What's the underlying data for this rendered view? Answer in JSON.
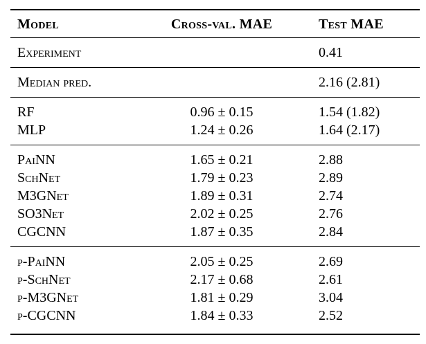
{
  "table": {
    "title": "model-mae-results-table",
    "columns": [
      {
        "label": "Model"
      },
      {
        "label": "Cross-val. MAE"
      },
      {
        "label": "Test MAE"
      }
    ],
    "rows": [
      {
        "model": "Experiment",
        "cv_mae": "",
        "test_mae": "0.41"
      },
      {
        "model": "Median pred.",
        "cv_mae": "",
        "test_mae": "2.16 (2.81)"
      },
      {
        "model": "RF",
        "cv_mae": "0.96 ± 0.15",
        "test_mae": "1.54 (1.82)"
      },
      {
        "model": "MLP",
        "cv_mae": "1.24 ± 0.26",
        "test_mae": "1.64 (2.17)"
      },
      {
        "model": "PaiNN",
        "cv_mae": "1.65 ± 0.21",
        "test_mae": "2.88"
      },
      {
        "model": "SchNet",
        "cv_mae": "1.79 ± 0.23",
        "test_mae": "2.89"
      },
      {
        "model": "M3GNet",
        "cv_mae": "1.89 ± 0.31",
        "test_mae": "2.74"
      },
      {
        "model": "SO3Net",
        "cv_mae": "2.02 ± 0.25",
        "test_mae": "2.76"
      },
      {
        "model": "CGCNN",
        "cv_mae": "1.87 ± 0.35",
        "test_mae": "2.84"
      },
      {
        "model": "p-PaiNN",
        "cv_mae": "2.05 ± 0.25",
        "test_mae": "2.69"
      },
      {
        "model": "p-SchNet",
        "cv_mae": "2.17 ± 0.68",
        "test_mae": "2.61"
      },
      {
        "model": "p-M3GNet",
        "cv_mae": "1.81 ± 0.29",
        "test_mae": "3.04"
      },
      {
        "model": "p-CGCNN",
        "cv_mae": "1.84 ± 0.33",
        "test_mae": "2.52"
      }
    ],
    "colors": {
      "text": "#000000",
      "background": "#ffffff",
      "rule": "#000000"
    }
  }
}
